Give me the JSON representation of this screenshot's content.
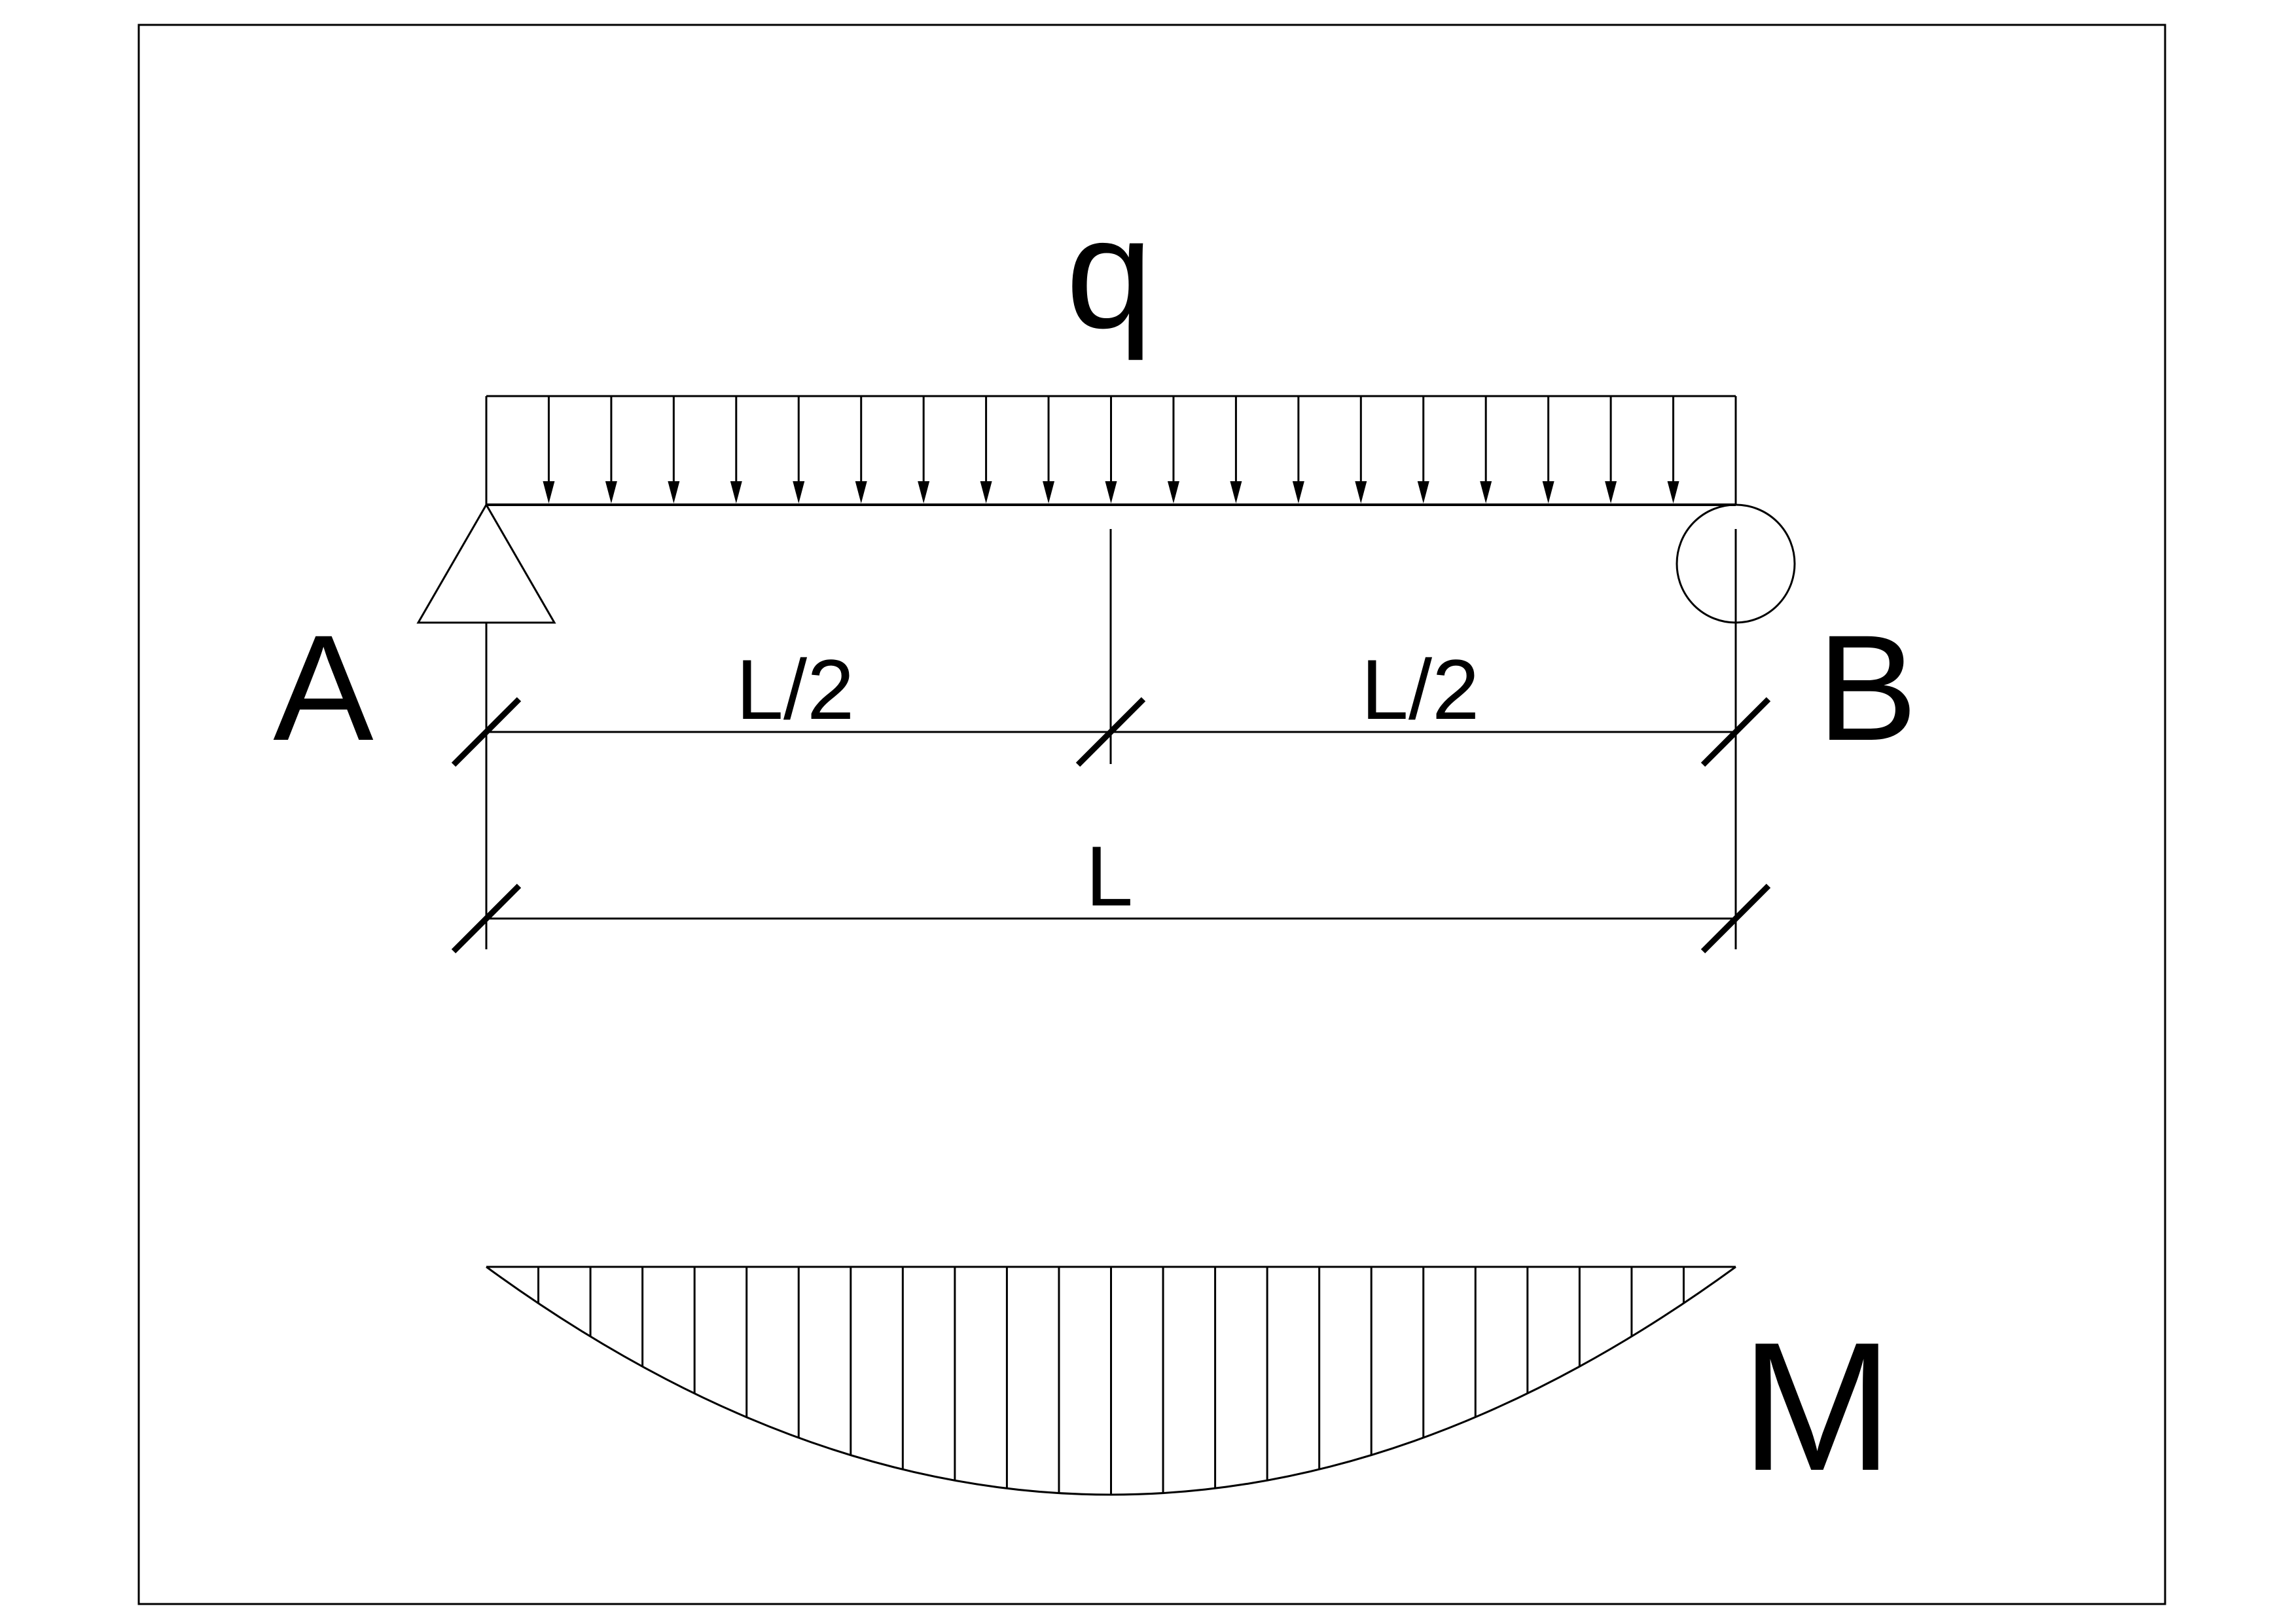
{
  "labels": {
    "load": "q",
    "support_a": "A",
    "support_b": "B",
    "half_left": "L/2",
    "half_right": "L/2",
    "span": "L",
    "moment": "M"
  },
  "load": {
    "type": "uniformly distributed",
    "arrow_count": 19,
    "direction": "down"
  },
  "supports": {
    "a": "pinned",
    "b": "roller"
  },
  "moment_diagram": {
    "shape": "parabola",
    "hatch_lines": 23
  }
}
